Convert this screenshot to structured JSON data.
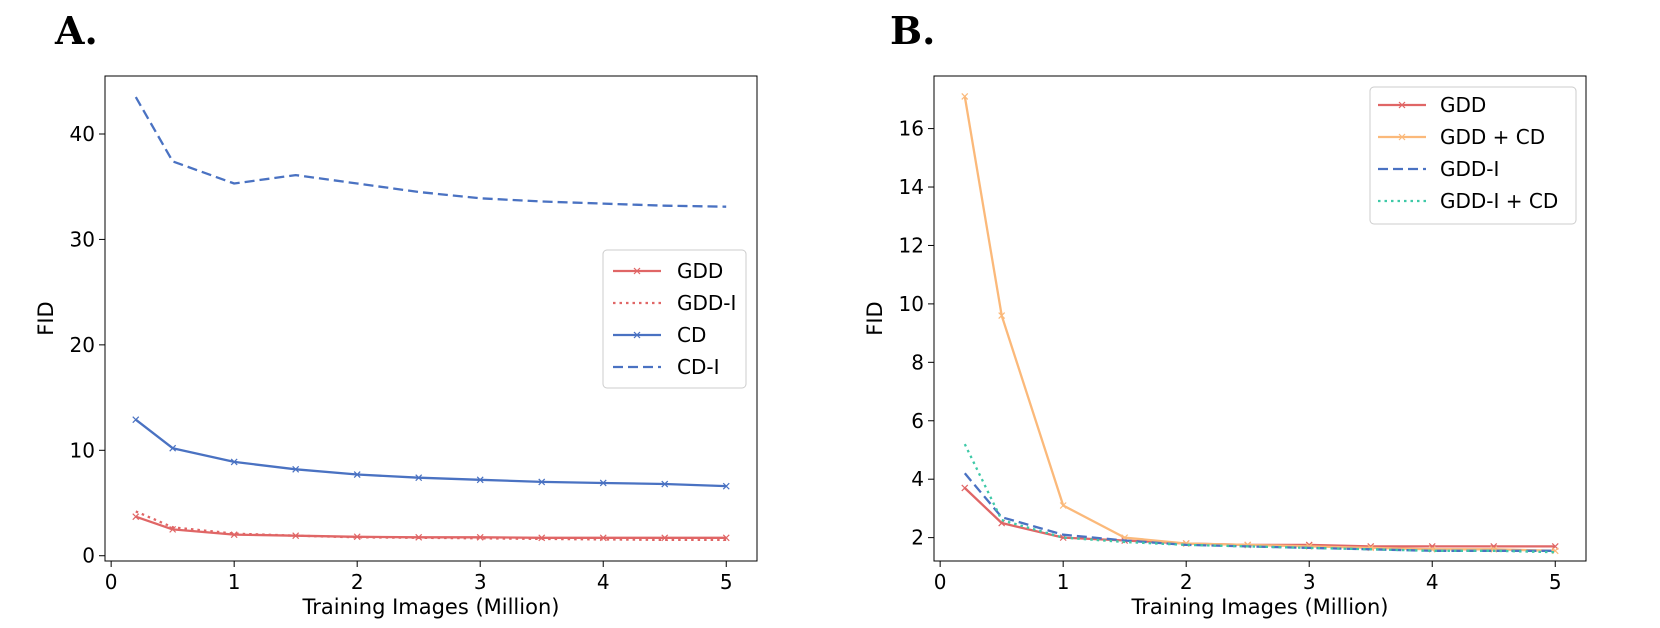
{
  "chart_data": [
    {
      "panel": "A.",
      "type": "line",
      "xlabel": "Training Images (Million)",
      "ylabel": "FID",
      "xlim": [
        -0.05,
        5.25
      ],
      "ylim": [
        -0.5,
        45.5
      ],
      "xticks": [
        0,
        1,
        2,
        3,
        4,
        5
      ],
      "yticks": [
        0,
        10,
        20,
        30,
        40
      ],
      "legend_position": "center-right",
      "series": [
        {
          "name": "GDD",
          "color": "#e06666",
          "dash": "solid",
          "marker": "x",
          "x": [
            0.2,
            0.5,
            1.0,
            1.5,
            2.0,
            2.5,
            3.0,
            3.5,
            4.0,
            4.5,
            5.0
          ],
          "y": [
            3.7,
            2.5,
            2.0,
            1.9,
            1.8,
            1.75,
            1.75,
            1.7,
            1.7,
            1.7,
            1.7
          ]
        },
        {
          "name": "GDD-I",
          "color": "#e06666",
          "dash": "dotted",
          "marker": "",
          "x": [
            0.2,
            0.5,
            1.0,
            1.5,
            2.0,
            2.5,
            3.0,
            3.5,
            4.0,
            4.5,
            5.0
          ],
          "y": [
            4.2,
            2.7,
            2.1,
            1.9,
            1.75,
            1.7,
            1.65,
            1.6,
            1.55,
            1.5,
            1.5
          ]
        },
        {
          "name": "CD",
          "color": "#4a72c2",
          "dash": "solid",
          "marker": "x",
          "x": [
            0.2,
            0.5,
            1.0,
            1.5,
            2.0,
            2.5,
            3.0,
            3.5,
            4.0,
            4.5,
            5.0
          ],
          "y": [
            12.9,
            10.2,
            8.9,
            8.2,
            7.7,
            7.4,
            7.2,
            7.0,
            6.9,
            6.8,
            6.6
          ]
        },
        {
          "name": "CD-I",
          "color": "#4a72c2",
          "dash": "dashed",
          "marker": "",
          "x": [
            0.2,
            0.5,
            1.0,
            1.5,
            2.0,
            2.5,
            3.0,
            3.5,
            4.0,
            4.5,
            5.0
          ],
          "y": [
            43.5,
            37.4,
            35.3,
            36.1,
            35.3,
            34.5,
            33.9,
            33.6,
            33.4,
            33.2,
            33.1
          ]
        }
      ]
    },
    {
      "panel": "B.",
      "type": "line",
      "xlabel": "Training Images (Million)",
      "ylabel": "FID",
      "xlim": [
        -0.05,
        5.25
      ],
      "ylim": [
        1.2,
        17.8
      ],
      "xticks": [
        0,
        1,
        2,
        3,
        4,
        5
      ],
      "yticks": [
        2,
        4,
        6,
        8,
        10,
        12,
        14,
        16
      ],
      "legend_position": "top-right",
      "series": [
        {
          "name": "GDD",
          "color": "#e06666",
          "dash": "solid",
          "marker": "x",
          "x": [
            0.2,
            0.5,
            1.0,
            1.5,
            2.0,
            2.5,
            3.0,
            3.5,
            4.0,
            4.5,
            5.0
          ],
          "y": [
            3.7,
            2.5,
            2.0,
            1.9,
            1.8,
            1.75,
            1.75,
            1.7,
            1.7,
            1.7,
            1.7
          ]
        },
        {
          "name": "GDD + CD",
          "color": "#fbb97a",
          "dash": "solid",
          "marker": "x",
          "x": [
            0.2,
            0.5,
            1.0,
            1.5,
            2.0,
            2.5,
            3.0,
            3.5,
            4.0,
            4.5,
            5.0
          ],
          "y": [
            17.1,
            9.6,
            3.1,
            2.0,
            1.8,
            1.75,
            1.7,
            1.65,
            1.6,
            1.6,
            1.55
          ]
        },
        {
          "name": "GDD-I",
          "color": "#4a72c2",
          "dash": "dashed",
          "marker": "",
          "x": [
            0.2,
            0.5,
            1.0,
            1.5,
            2.0,
            2.5,
            3.0,
            3.5,
            4.0,
            4.5,
            5.0
          ],
          "y": [
            4.2,
            2.7,
            2.1,
            1.9,
            1.75,
            1.7,
            1.65,
            1.6,
            1.55,
            1.55,
            1.55
          ]
        },
        {
          "name": "GDD-I + CD",
          "color": "#3ec9a7",
          "dash": "dotted",
          "marker": "",
          "x": [
            0.2,
            0.5,
            1.0,
            1.5,
            2.0,
            2.5,
            3.0,
            3.5,
            4.0,
            4.5,
            5.0
          ],
          "y": [
            5.2,
            2.6,
            2.0,
            1.85,
            1.75,
            1.7,
            1.65,
            1.6,
            1.55,
            1.55,
            1.5
          ]
        }
      ]
    }
  ]
}
